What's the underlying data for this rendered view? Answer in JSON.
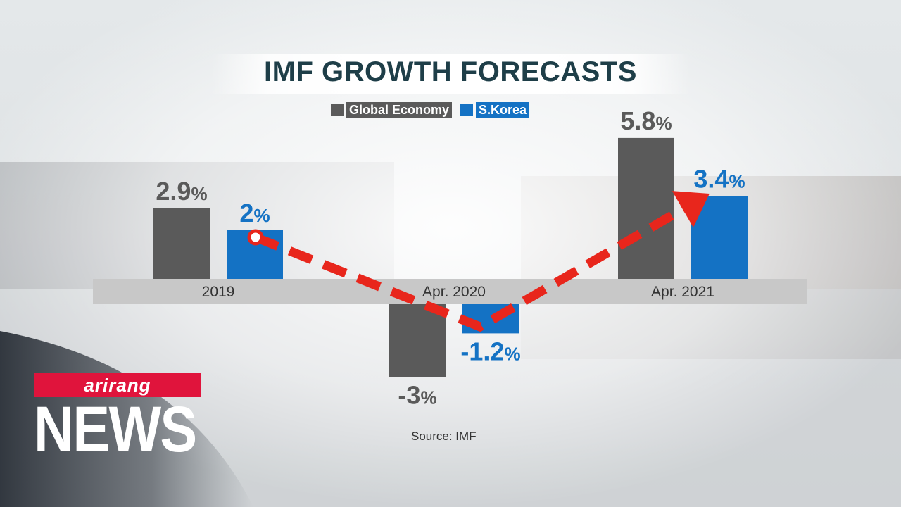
{
  "chart_data": {
    "type": "bar",
    "title": "IMF GROWTH FORECASTS",
    "categories": [
      "2019",
      "Apr. 2020",
      "Apr. 2021"
    ],
    "series": [
      {
        "name": "Global Economy",
        "values": [
          2.9,
          -3,
          5.8
        ],
        "labels": [
          "2.9",
          "-3",
          "5.8"
        ],
        "color": "#5a5a5a"
      },
      {
        "name": "S.Korea",
        "values": [
          2,
          -1.2,
          3.4
        ],
        "labels": [
          "2",
          "-1.2",
          "3.4"
        ],
        "color": "#1472c4"
      }
    ],
    "unit": "%",
    "ylim": [
      -3.4,
      6.6
    ],
    "grid": false,
    "legend_position": "top-center",
    "annotation": "dashed red arrow connecting S.Korea bars from 2019 down to Apr. 2020 and up to Apr. 2021",
    "arrow_color": "#e8261c"
  },
  "source": "Source: IMF",
  "logo": {
    "brand": "arirang",
    "program": "NEWS"
  },
  "colors": {
    "brand_red": "#e0143c",
    "axis_band": "#c8c8c8"
  }
}
